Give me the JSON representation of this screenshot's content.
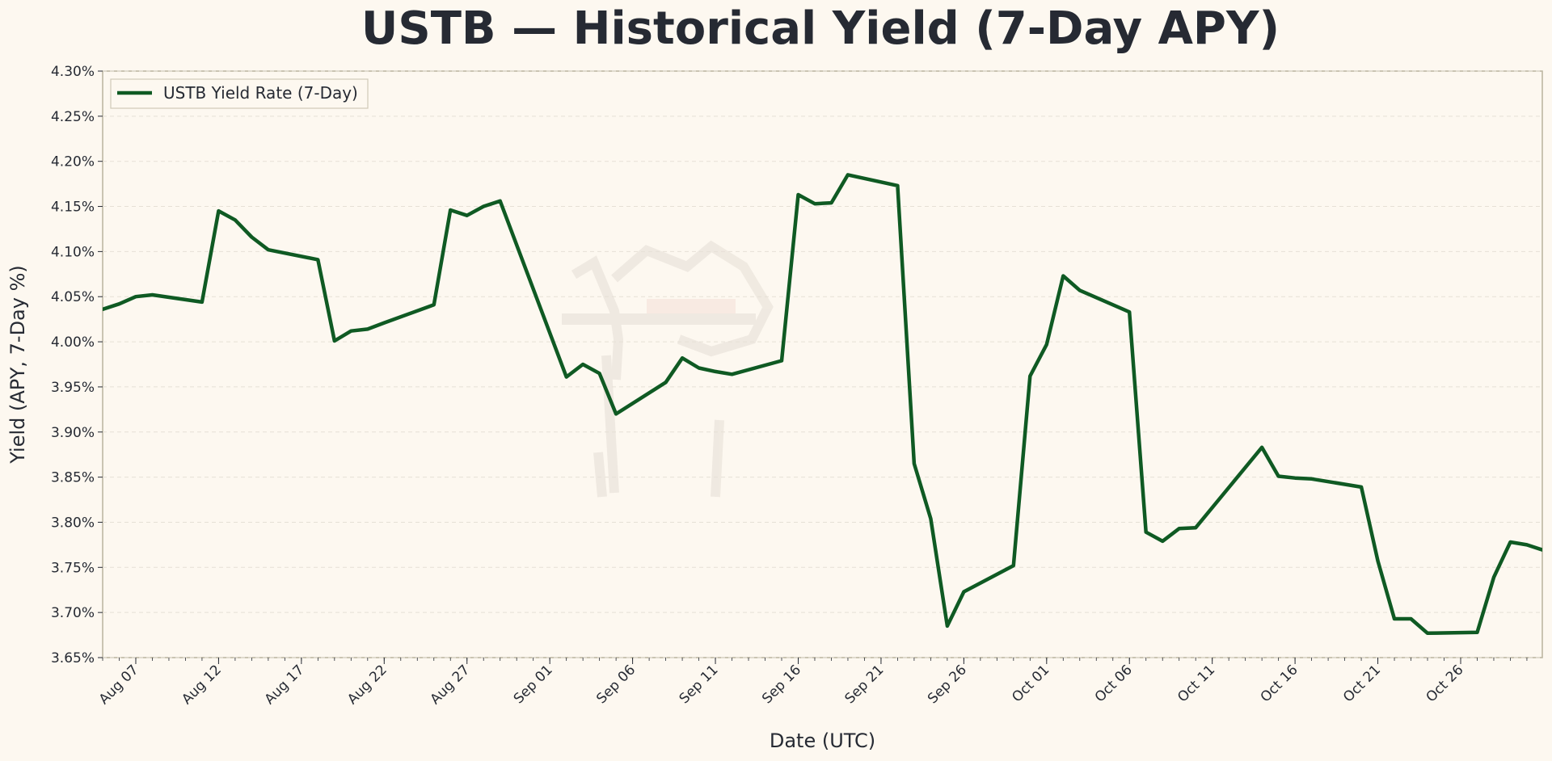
{
  "chart_data": {
    "type": "line",
    "title": "USTB — Historical Yield (7-Day APY)",
    "xlabel": "Date (UTC)",
    "ylabel": "Yield (APY, 7-Day %)",
    "x_range": [
      "2025-08-05",
      "2025-10-30"
    ],
    "ylim": [
      3.65,
      4.3
    ],
    "y_ticks": [
      3.65,
      3.7,
      3.75,
      3.8,
      3.85,
      3.9,
      3.95,
      4.0,
      4.05,
      4.1,
      4.15,
      4.2,
      4.25,
      4.3
    ],
    "y_tick_labels": [
      "3.65%",
      "3.70%",
      "3.75%",
      "3.80%",
      "3.85%",
      "3.90%",
      "3.95%",
      "4.00%",
      "4.05%",
      "4.10%",
      "4.15%",
      "4.20%",
      "4.25%",
      "4.30%"
    ],
    "x_ticks": [
      "2025-08-07",
      "2025-08-12",
      "2025-08-17",
      "2025-08-22",
      "2025-08-27",
      "2025-09-01",
      "2025-09-06",
      "2025-09-11",
      "2025-09-16",
      "2025-09-21",
      "2025-09-26",
      "2025-10-01",
      "2025-10-06",
      "2025-10-11",
      "2025-10-16",
      "2025-10-21",
      "2025-10-26"
    ],
    "x_tick_labels": [
      "Aug 07",
      "Aug 12",
      "Aug 17",
      "Aug 22",
      "Aug 27",
      "Sep 01",
      "Sep 06",
      "Sep 11",
      "Sep 16",
      "Sep 21",
      "Sep 26",
      "Oct 01",
      "Oct 06",
      "Oct 11",
      "Oct 16",
      "Oct 21",
      "Oct 26"
    ],
    "grid": "horizontal-dashed",
    "legend_position": "top-left",
    "series": [
      {
        "name": "USTB Yield Rate (7-Day)",
        "color": "#0f5a23",
        "x": [
          "2025-08-05",
          "2025-08-06",
          "2025-08-07",
          "2025-08-08",
          "2025-08-11",
          "2025-08-12",
          "2025-08-13",
          "2025-08-14",
          "2025-08-15",
          "2025-08-18",
          "2025-08-19",
          "2025-08-20",
          "2025-08-21",
          "2025-08-22",
          "2025-08-25",
          "2025-08-26",
          "2025-08-27",
          "2025-08-28",
          "2025-08-29",
          "2025-09-02",
          "2025-09-03",
          "2025-09-04",
          "2025-09-05",
          "2025-09-08",
          "2025-09-09",
          "2025-09-10",
          "2025-09-11",
          "2025-09-12",
          "2025-09-15",
          "2025-09-16",
          "2025-09-17",
          "2025-09-18",
          "2025-09-19",
          "2025-09-22",
          "2025-09-23",
          "2025-09-24",
          "2025-09-25",
          "2025-09-26",
          "2025-09-29",
          "2025-09-30",
          "2025-10-01",
          "2025-10-02",
          "2025-10-03",
          "2025-10-06",
          "2025-10-07",
          "2025-10-08",
          "2025-10-09",
          "2025-10-10",
          "2025-10-14",
          "2025-10-15",
          "2025-10-16",
          "2025-10-17",
          "2025-10-20",
          "2025-10-21",
          "2025-10-22",
          "2025-10-23",
          "2025-10-24",
          "2025-10-27",
          "2025-10-28",
          "2025-10-29",
          "2025-10-30",
          "2025-10-31"
        ],
        "values": [
          4.036,
          4.042,
          4.05,
          4.052,
          4.044,
          4.145,
          4.135,
          4.116,
          4.102,
          4.091,
          4.001,
          4.012,
          4.014,
          4.021,
          4.041,
          4.146,
          4.14,
          4.15,
          4.156,
          3.961,
          3.975,
          3.965,
          3.92,
          3.955,
          3.982,
          3.971,
          3.967,
          3.964,
          3.979,
          4.163,
          4.153,
          4.154,
          4.185,
          4.173,
          3.865,
          3.804,
          3.685,
          3.723,
          3.752,
          3.962,
          3.997,
          4.073,
          4.057,
          4.033,
          3.789,
          3.779,
          3.793,
          3.794,
          3.883,
          3.851,
          3.849,
          3.848,
          3.839,
          3.757,
          3.693,
          3.693,
          3.677,
          3.678,
          3.739,
          3.778,
          3.775,
          3.769
        ]
      }
    ]
  }
}
